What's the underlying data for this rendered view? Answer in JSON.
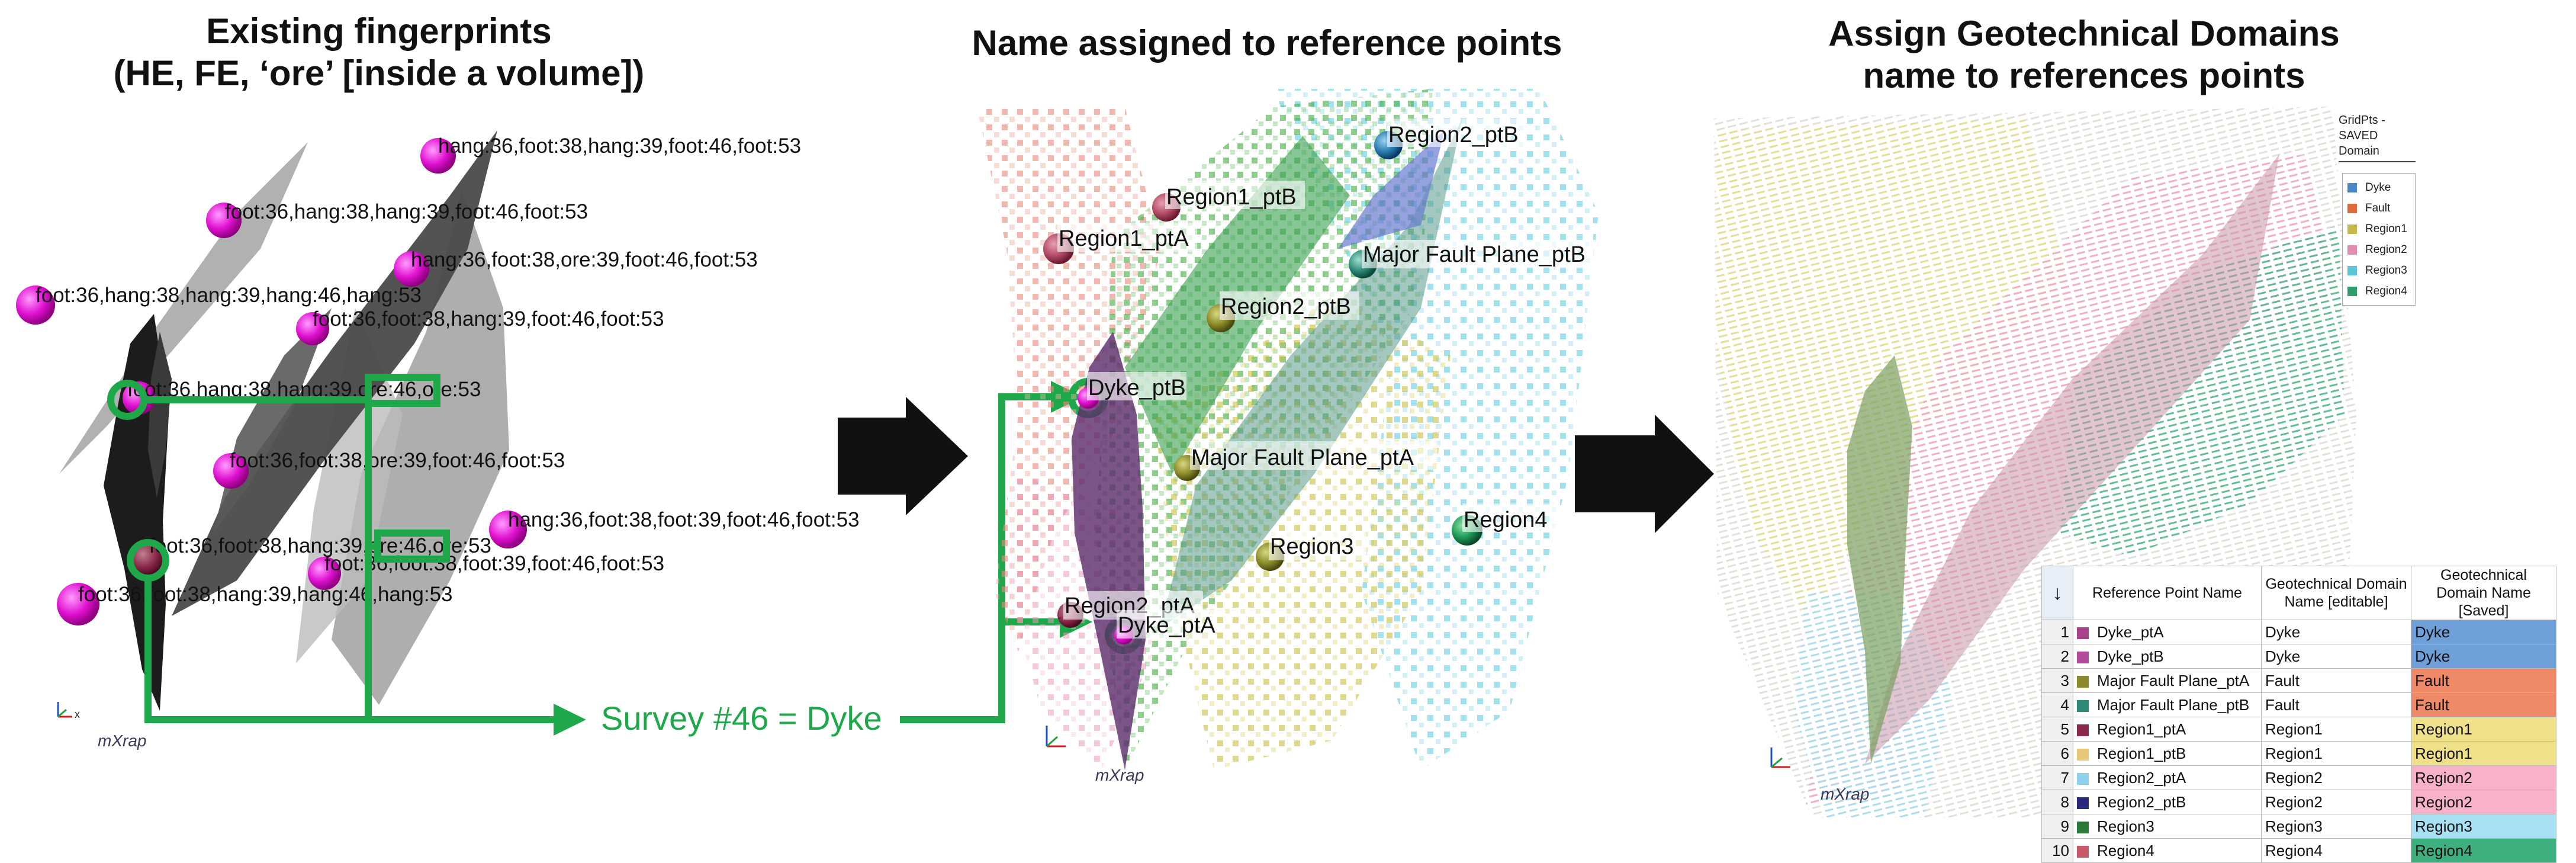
{
  "titles": {
    "panel1_line1": "Existing fingerprints",
    "panel1_line2": "(HE, FE, ‘ore’ [inside a volume])",
    "panel2": "Name assigned to reference points",
    "panel3_line1": "Assign Geotechnical Domains",
    "panel3_line2": "name to references points"
  },
  "panel1": {
    "labels": [
      "hang:36,foot:38,hang:39,foot:46,foot:53",
      "foot:36,hang:38,hang:39,foot:46,foot:53",
      "hang:36,foot:38,ore:39,foot:46,foot:53",
      "foot:36,hang:38,hang:39,hang:46,hang:53",
      "foot:36,foot:38,hang:39,foot:46,foot:53",
      "foot:36,hang:38,hang:39,ore:46,ore:53",
      "foot:36,foot:38,ore:39,foot:46,foot:53",
      "hang:36,foot:38,foot:39,foot:46,foot:53",
      "foot:36,foot:38,hang:39,ore:46,ore:53",
      "foot:36,foot:38,foot:39,foot:46,foot:53",
      "foot:36,foot:38,hang:39,hang:46,hang:53"
    ],
    "conclusion": "Survey #46 = Dyke",
    "axis_label": "x",
    "logo": "mXrap"
  },
  "panel2": {
    "labels": [
      "Region2_ptB",
      "Region1_ptB",
      "Region1_ptA",
      "Major Fault Plane_ptB",
      "Region2_ptB",
      "Dyke_ptB",
      "Major Fault Plane_ptA",
      "Region4",
      "Region3",
      "Region2_ptA",
      "Dyke_ptA"
    ],
    "logo": "mXrap"
  },
  "panel3": {
    "legend_title": "GridPts - SAVED Domain",
    "legend": [
      {
        "name": "Dyke",
        "color": "#4a86c8"
      },
      {
        "name": "Fault",
        "color": "#e06a3a"
      },
      {
        "name": "Region1",
        "color": "#c8b84a"
      },
      {
        "name": "Region2",
        "color": "#e58ab0"
      },
      {
        "name": "Region3",
        "color": "#5ec4dc"
      },
      {
        "name": "Region4",
        "color": "#2e9e6e"
      }
    ],
    "table": {
      "sort_icon": "↓",
      "headers": [
        "Reference Point Name",
        "Geotechnical Domain Name [editable]",
        "Geotechnical Domain Name [Saved]"
      ],
      "rows": [
        {
          "num": "1",
          "name": "Dyke_ptA",
          "editable": "Dyke",
          "saved": "Dyke",
          "chip": "#a8448c",
          "bg": "#6f9fd8"
        },
        {
          "num": "2",
          "name": "Dyke_ptB",
          "editable": "Dyke",
          "saved": "Dyke",
          "chip": "#b44a9c",
          "bg": "#6f9fd8"
        },
        {
          "num": "3",
          "name": "Major Fault Plane_ptA",
          "editable": "Fault",
          "saved": "Fault",
          "chip": "#8a8a2a",
          "bg": "#ef8a68"
        },
        {
          "num": "4",
          "name": "Major Fault Plane_ptB",
          "editable": "Fault",
          "saved": "Fault",
          "chip": "#2e8a78",
          "bg": "#ef8a68"
        },
        {
          "num": "5",
          "name": "Region1_ptA",
          "editable": "Region1",
          "saved": "Region1",
          "chip": "#8a2a4a",
          "bg": "#efe08a"
        },
        {
          "num": "6",
          "name": "Region1_ptB",
          "editable": "Region1",
          "saved": "Region1",
          "chip": "#e8c878",
          "bg": "#efe08a"
        },
        {
          "num": "7",
          "name": "Region2_ptA",
          "editable": "Region2",
          "saved": "Region2",
          "chip": "#8ed0ec",
          "bg": "#f8b2c8"
        },
        {
          "num": "8",
          "name": "Region2_ptB",
          "editable": "Region2",
          "saved": "Region2",
          "chip": "#2a2a7a",
          "bg": "#f8b2c8"
        },
        {
          "num": "9",
          "name": "Region3",
          "editable": "Region3",
          "saved": "Region3",
          "chip": "#2a7a3a",
          "bg": "#a8e0f4"
        },
        {
          "num": "10",
          "name": "Region4",
          "editable": "Region4",
          "saved": "Region4",
          "chip": "#c85a6a",
          "bg": "#3eb07e"
        }
      ]
    },
    "logo": "mXrap"
  }
}
